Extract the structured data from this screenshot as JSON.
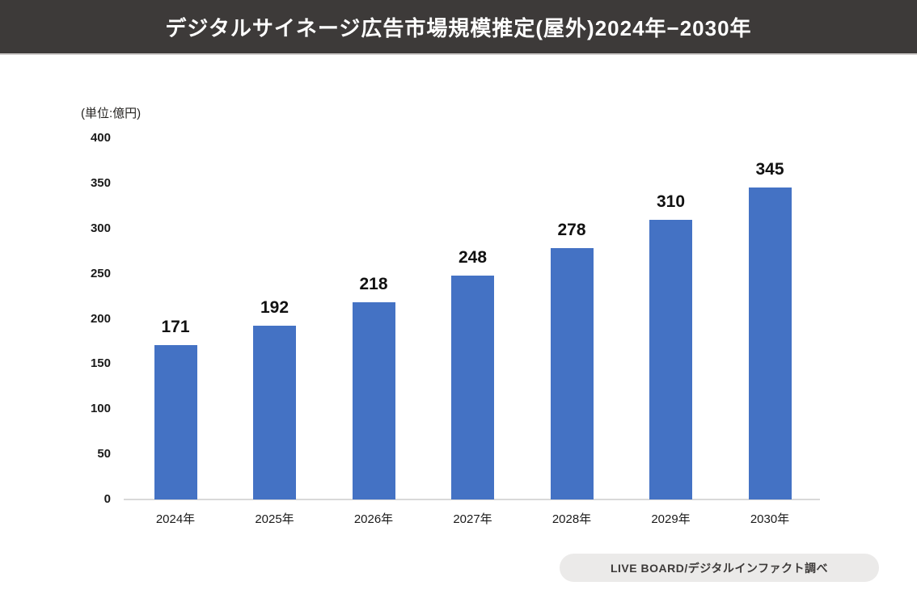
{
  "header": {
    "title": "デジタルサイネージ広告市場規模推定(屋外)2024年−2030年",
    "bg_color": "#3d3a39",
    "text_color": "#ffffff"
  },
  "chart": {
    "unit_label": "(単位:億円)"
  },
  "chart_data": {
    "type": "bar",
    "title": "デジタルサイネージ広告市場規模推定(屋外)2024年−2030年",
    "categories": [
      "2024年",
      "2025年",
      "2026年",
      "2027年",
      "2028年",
      "2029年",
      "2030年"
    ],
    "values": [
      171,
      192,
      218,
      248,
      278,
      310,
      345
    ],
    "data_labels": true,
    "bar_color": "#4472c4",
    "xlabel": "",
    "ylabel": "(単位:億円)",
    "ylim": [
      0,
      400
    ],
    "yticks": [
      0,
      50,
      100,
      150,
      200,
      250,
      300,
      350,
      400
    ],
    "grid": false,
    "legend": false,
    "axis_line_color": "#d9d9d9"
  },
  "footer": {
    "source": "LIVE BOARD/デジタルインファクト調べ"
  }
}
